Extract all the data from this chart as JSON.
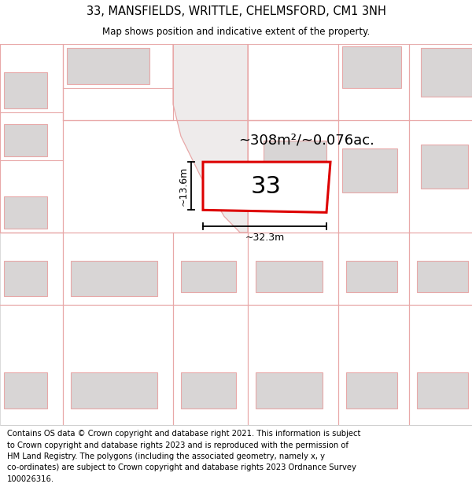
{
  "title": "33, MANSFIELDS, WRITTLE, CHELMSFORD, CM1 3NH",
  "subtitle": "Map shows position and indicative extent of the property.",
  "footer_lines": [
    "Contains OS data © Crown copyright and database right 2021. This information is subject",
    "to Crown copyright and database rights 2023 and is reproduced with the permission of",
    "HM Land Registry. The polygons (including the associated geometry, namely x, y",
    "co-ordinates) are subject to Crown copyright and database rights 2023 Ordnance Survey",
    "100026316."
  ],
  "area_label": "~308m²/~0.076ac.",
  "width_label": "~32.3m",
  "height_label": "~13.6m",
  "plot_number": "33",
  "map_bg": "#f7f4f4",
  "outline_color": "#e8a8a8",
  "building_fill": "#d8d5d5",
  "highlight_color": "#dd0000",
  "highlight_fill": "#ffffff",
  "title_fontsize": 10.5,
  "subtitle_fontsize": 8.5,
  "footer_fontsize": 7.2,
  "area_fontsize": 13,
  "number_fontsize": 22,
  "dim_fontsize": 9
}
